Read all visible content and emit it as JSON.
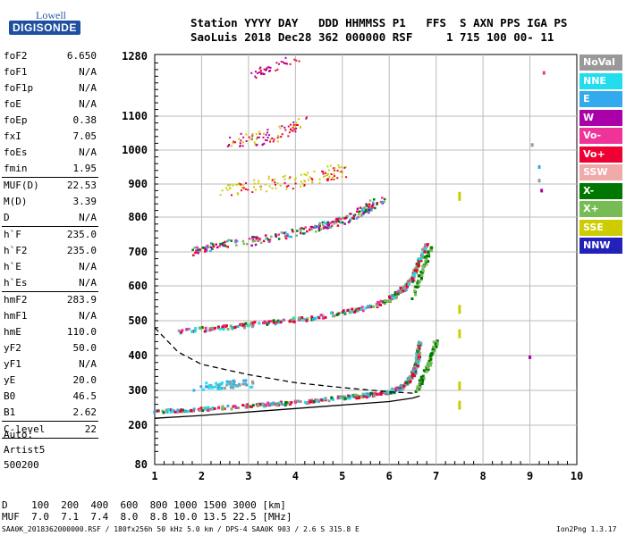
{
  "logo": {
    "line1": "Lowell",
    "line2": "DIGISONDE"
  },
  "header": {
    "row1": "Station YYYY DAY   DDD HHMMSS P1   FFS  S AXN PPS IGA PS",
    "row2": "SaoLuis 2018 Dec28 362 000000 RSF     1 715 100 00- 11"
  },
  "parameters": [
    {
      "key": "foF2",
      "value": "6.650"
    },
    {
      "key": "foF1",
      "value": "N/A"
    },
    {
      "key": "foF1p",
      "value": "N/A"
    },
    {
      "key": "foE",
      "value": "N/A"
    },
    {
      "key": "foEp",
      "value": "0.38"
    },
    {
      "key": "fxI",
      "value": "7.05"
    },
    {
      "key": "foEs",
      "value": "N/A"
    },
    {
      "key": "fmin",
      "value": "1.95",
      "sep": true
    },
    {
      "key": "MUF(D)",
      "value": "22.53"
    },
    {
      "key": "M(D)",
      "value": "3.39"
    },
    {
      "key": "D",
      "value": "N/A",
      "sep": true
    },
    {
      "key": "h`F",
      "value": "235.0"
    },
    {
      "key": "h`F2",
      "value": "235.0"
    },
    {
      "key": "h`E",
      "value": "N/A"
    },
    {
      "key": "h`Es",
      "value": "N/A",
      "sep": true
    },
    {
      "key": "hmF2",
      "value": "283.9"
    },
    {
      "key": "hmF1",
      "value": "N/A"
    },
    {
      "key": "hmE",
      "value": "110.0"
    },
    {
      "key": "yF2",
      "value": "50.0"
    },
    {
      "key": "yF1",
      "value": "N/A"
    },
    {
      "key": "yE",
      "value": "20.0"
    },
    {
      "key": "B0",
      "value": "46.5"
    },
    {
      "key": "B1",
      "value": "2.62",
      "sep": true
    },
    {
      "key": "C-level",
      "value": "22",
      "sep": true
    }
  ],
  "auto": {
    "line1": "Auto:",
    "line2": "Artist5",
    "line3": "500200"
  },
  "legend": [
    {
      "label": "NoVal",
      "color": "#999999"
    },
    {
      "label": "NNE",
      "color": "#22ddee"
    },
    {
      "label": "E",
      "color": "#33aaee"
    },
    {
      "label": "W",
      "color": "#aa00aa"
    },
    {
      "label": "Vo-",
      "color": "#ee3399"
    },
    {
      "label": "Vo+",
      "color": "#ee0033"
    },
    {
      "label": "SSW",
      "color": "#f0aaaa"
    },
    {
      "label": "X-",
      "color": "#007700"
    },
    {
      "label": "X+",
      "color": "#77bb55"
    },
    {
      "label": "SSE",
      "color": "#cccc00"
    },
    {
      "label": "NNW",
      "color": "#2222bb"
    }
  ],
  "footer": {
    "row1": "D    100  200  400  600  800 1000 1500 3000 [km]",
    "row2": "MUF  7.0  7.1  7.4  8.0  8.8 10.0 13.5 22.5 [MHz]",
    "bottom_left": "SAA0K_2018362000000.RSF / 180fx256h 50 kHz 5.0 km / DPS-4 SAA0K 903 / 2.6 S 315.8 E",
    "bottom_right": "Ion2Png 1.3.17"
  },
  "chart_data": {
    "type": "scatter",
    "x_ticks": [
      "1",
      "2",
      "3",
      "4",
      "5",
      "6",
      "7",
      "8",
      "9",
      "10"
    ],
    "y_ticks": [
      "80",
      "200",
      "300",
      "400",
      "500",
      "600",
      "700",
      "800",
      "900",
      "1000",
      "1100",
      "1280"
    ],
    "xlim": [
      1,
      10
    ],
    "ylim_labels": [
      80,
      1280
    ],
    "grid": true,
    "traces": [
      {
        "name": "F2 trace",
        "x": [
          1.0,
          2.0,
          3.0,
          4.0,
          5.0,
          5.5,
          6.0,
          6.3,
          6.5,
          6.6,
          6.65
        ],
        "y": [
          238,
          245,
          255,
          265,
          278,
          285,
          295,
          310,
          340,
          380,
          440
        ]
      },
      {
        "name": "2F trace",
        "x": [
          1.5,
          2.5,
          3.5,
          4.5,
          5.5,
          6.0,
          6.3,
          6.5,
          6.6,
          6.8
        ],
        "y": [
          468,
          480,
          495,
          510,
          535,
          560,
          590,
          620,
          660,
          720
        ]
      },
      {
        "name": "3F trace",
        "x": [
          1.8,
          2.5,
          3.5,
          4.5,
          5.0,
          5.5,
          5.8
        ],
        "y": [
          700,
          720,
          740,
          770,
          790,
          820,
          850
        ]
      }
    ],
    "profile_lower": {
      "x": [
        1.0,
        2.0,
        3.0,
        4.0,
        5.0,
        6.0,
        6.5,
        6.65
      ],
      "y": [
        220,
        228,
        238,
        248,
        258,
        268,
        278,
        284
      ]
    },
    "profile_upper": {
      "x": [
        1.0,
        1.5,
        2.0,
        3.0,
        4.0,
        5.0,
        6.0,
        6.5
      ],
      "y": [
        480,
        410,
        375,
        345,
        322,
        308,
        296,
        292
      ]
    }
  }
}
